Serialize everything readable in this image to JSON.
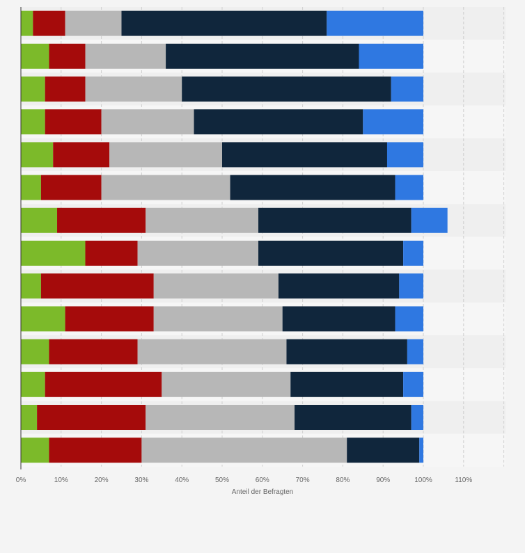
{
  "chart_data": {
    "type": "bar",
    "orientation": "horizontal",
    "stacked": true,
    "title": "",
    "xlabel": "Anteil der Befragten",
    "ylabel": "",
    "xlim": [
      0,
      120
    ],
    "xticks": [
      "0%",
      "10%",
      "20%",
      "30%",
      "40%",
      "50%",
      "60%",
      "70%",
      "80%",
      "90%",
      "100%",
      "110%"
    ],
    "grid": "vertical dashed",
    "legend": "none visible",
    "categories": [
      "",
      "",
      "",
      "",
      "",
      "",
      "",
      "",
      "",
      "",
      "",
      "",
      "",
      ""
    ],
    "series": [
      {
        "color": "#7cba2a",
        "values": [
          3,
          7,
          6,
          6,
          8,
          5,
          9,
          16,
          5,
          11,
          7,
          6,
          4,
          7
        ]
      },
      {
        "color": "#a50b0b",
        "values": [
          8,
          9,
          10,
          14,
          14,
          15,
          22,
          13,
          28,
          22,
          22,
          29,
          27,
          23
        ]
      },
      {
        "color": "#b7b7b7",
        "values": [
          14,
          20,
          24,
          23,
          28,
          32,
          28,
          30,
          31,
          32,
          37,
          32,
          37,
          51
        ]
      },
      {
        "color": "#10263c",
        "values": [
          51,
          48,
          52,
          42,
          41,
          41,
          38,
          36,
          30,
          28,
          30,
          28,
          29,
          18
        ]
      },
      {
        "color": "#2f78e1",
        "values": [
          24,
          16,
          8,
          15,
          9,
          7,
          9,
          5,
          6,
          7,
          4,
          5,
          3,
          1
        ]
      }
    ]
  }
}
